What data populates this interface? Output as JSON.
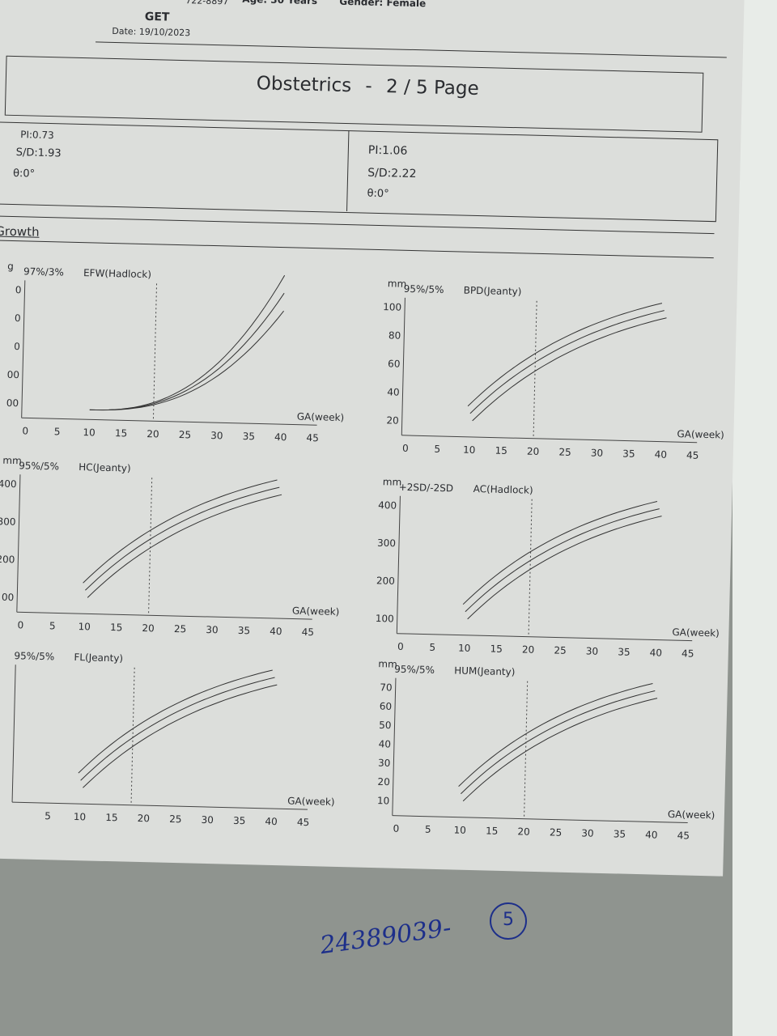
{
  "header": {
    "phone": "722-8897",
    "age": "Age: 30 Years",
    "gender": "Gender: Female",
    "name_fragment": "GET",
    "date": "Date: 19/10/2023",
    "title": "Obstetrics",
    "separator": "-",
    "page": "2 / 5 Page"
  },
  "doppler": [
    {
      "pi": "PI:0.73",
      "sd": "S/D:1.93",
      "theta": "θ:0°"
    },
    {
      "pi": "PI:1.06",
      "sd": "S/D:2.22",
      "theta": "θ:0°"
    }
  ],
  "section": "Growth",
  "charts": [
    {
      "unit": "g",
      "legend": "97%/3%",
      "title": "EFW(Hadlock)",
      "yticks": [
        "0",
        "0",
        "0",
        "00",
        "00"
      ],
      "xticks": [
        "0",
        "5",
        "10",
        "15",
        "20",
        "25",
        "30",
        "35",
        "40",
        "45"
      ],
      "xlabel": "GA(week)"
    },
    {
      "unit": "mm",
      "legend": "95%/5%",
      "title": "BPD(Jeanty)",
      "yticks": [
        "100",
        "80",
        "60",
        "40",
        "20"
      ],
      "xticks": [
        "0",
        "5",
        "10",
        "15",
        "20",
        "25",
        "30",
        "35",
        "40",
        "45"
      ],
      "xlabel": "GA(week)"
    },
    {
      "unit": "mm",
      "legend": "95%/5%",
      "title": "HC(Jeanty)",
      "yticks": [
        "400",
        "300",
        "200",
        "00"
      ],
      "xticks": [
        "0",
        "5",
        "10",
        "15",
        "20",
        "25",
        "30",
        "35",
        "40",
        "45"
      ],
      "xlabel": "GA(week)"
    },
    {
      "unit": "mm",
      "legend": "+2SD/-2SD",
      "title": "AC(Hadlock)",
      "yticks": [
        "400",
        "300",
        "200",
        "100"
      ],
      "xticks": [
        "0",
        "5",
        "10",
        "15",
        "20",
        "25",
        "30",
        "35",
        "40",
        "45"
      ],
      "xlabel": "GA(week)"
    },
    {
      "legend": "95%/5%",
      "title": "FL(Jeanty)",
      "yticks": [],
      "xticks": [
        "5",
        "10",
        "15",
        "20",
        "25",
        "30",
        "35",
        "40",
        "45"
      ],
      "xlabel": "GA(week)"
    },
    {
      "unit": "mm",
      "legend": "95%/5%",
      "title": "HUM(Jeanty)",
      "yticks": [
        "70",
        "60",
        "50",
        "40",
        "30",
        "20",
        "10"
      ],
      "xticks": [
        "0",
        "5",
        "10",
        "15",
        "20",
        "25",
        "30",
        "35",
        "40",
        "45"
      ],
      "xlabel": "GA(week)"
    }
  ],
  "handwritten": {
    "number": "24389039-",
    "circled": "5"
  }
}
